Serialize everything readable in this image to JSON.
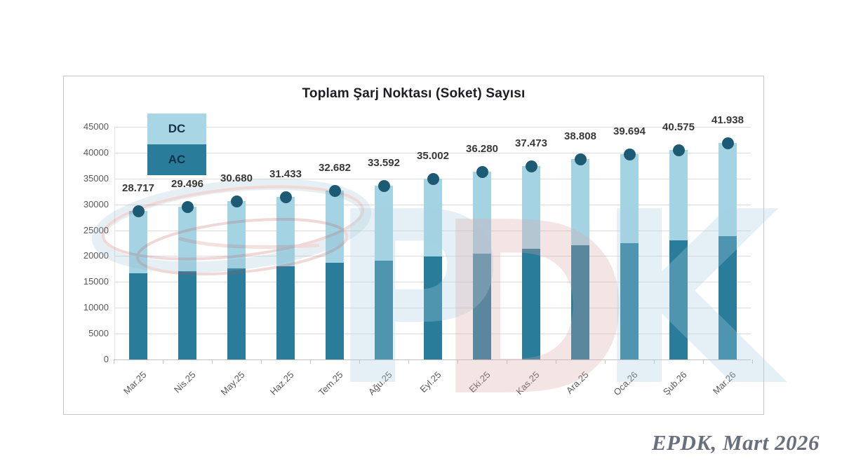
{
  "chart_data": {
    "type": "bar",
    "stacked": true,
    "title": "Toplam Şarj Noktası (Soket) Sayısı",
    "categories": [
      "Mar.25",
      "Nis.25",
      "May.25",
      "Haz.25",
      "Tem.25",
      "Ağu.25",
      "Eyl.25",
      "Eki.25",
      "Kas.25",
      "Ara.25",
      "Oca.26",
      "Şub.26",
      "Mar.26"
    ],
    "totals": [
      28717,
      29496,
      30680,
      31433,
      32682,
      33592,
      35002,
      36280,
      37473,
      38808,
      39694,
      40575,
      41938
    ],
    "total_labels": [
      "28.717",
      "29.496",
      "30.680",
      "31.433",
      "32.682",
      "33.592",
      "35.002",
      "36.280",
      "37.473",
      "38.808",
      "39.694",
      "40.575",
      "41.938"
    ],
    "series": [
      {
        "name": "AC",
        "color": "#2a7c9b",
        "values": [
          16650,
          17100,
          17650,
          18000,
          18700,
          19150,
          19920,
          20530,
          21350,
          22100,
          22550,
          23000,
          23800
        ]
      },
      {
        "name": "DC",
        "color": "#a4d4e3",
        "values": [
          12067,
          12396,
          13030,
          13433,
          13982,
          14442,
          15082,
          15750,
          16123,
          16708,
          17144,
          17575,
          18138
        ]
      }
    ],
    "xlabel": "",
    "ylabel": "",
    "ylim": [
      0,
      45000
    ],
    "ytick_step": 5000,
    "ytick_labels": [
      "0",
      "5000",
      "10000",
      "15000",
      "20000",
      "25000",
      "30000",
      "35000",
      "40000",
      "45000"
    ],
    "grid": true,
    "legend_position": "top-left",
    "marker_color": "#1d5a73"
  },
  "legend": {
    "dc_label": "DC",
    "ac_label": "AC",
    "dc_color": "#a9d6e5",
    "ac_color": "#2a7c9b"
  },
  "watermark": {
    "letters": [
      "P",
      "D",
      "K"
    ]
  },
  "caption": {
    "text": "EPDK, Mart 2026"
  },
  "colors": {
    "ac_bar": "#2a7c9b",
    "dc_bar": "#a4d4e3",
    "marker": "#1d5a73",
    "gridline": "#dcdcdc",
    "axis_text": "#595959",
    "label_text": "#383838",
    "caption_text": "#68707e",
    "watermark_blue": "#a8cfe0",
    "watermark_red": "#c0504d"
  }
}
